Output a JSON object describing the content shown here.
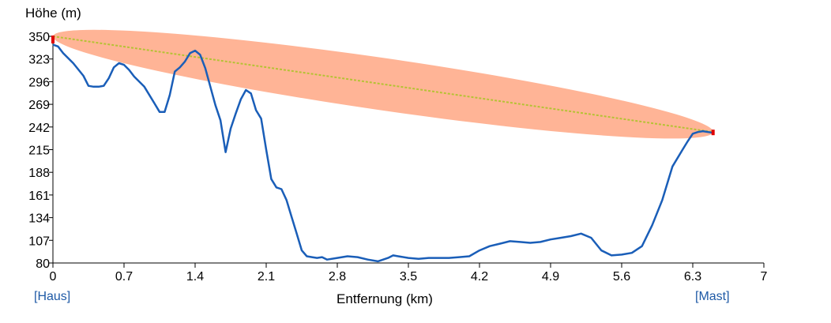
{
  "chart_data": {
    "type": "line",
    "ylabel": "Höhe (m)",
    "xlabel": "Entfernung (km)",
    "xlim": [
      0,
      7
    ],
    "ylim": [
      80,
      350
    ],
    "x_ticks": [
      "0",
      "0.7",
      "1.4",
      "2.1",
      "2.8",
      "3.5",
      "4.2",
      "4.9",
      "5.6",
      "6.3",
      "7"
    ],
    "y_ticks": [
      "350",
      "323",
      "296",
      "269",
      "242",
      "215",
      "188",
      "161",
      "134",
      "107",
      "80"
    ],
    "grid": false,
    "series": [
      {
        "color": "#1a5eb8",
        "x": [
          0,
          0.05,
          0.1,
          0.2,
          0.3,
          0.35,
          0.4,
          0.45,
          0.5,
          0.55,
          0.6,
          0.65,
          0.7,
          0.75,
          0.8,
          0.9,
          1.0,
          1.05,
          1.1,
          1.15,
          1.2,
          1.25,
          1.3,
          1.35,
          1.4,
          1.45,
          1.5,
          1.55,
          1.6,
          1.65,
          1.7,
          1.75,
          1.8,
          1.85,
          1.9,
          1.95,
          2.0,
          2.05,
          2.1,
          2.15,
          2.2,
          2.25,
          2.3,
          2.35,
          2.4,
          2.45,
          2.5,
          2.55,
          2.6,
          2.65,
          2.7,
          2.8,
          2.9,
          3.0,
          3.1,
          3.2,
          3.3,
          3.35,
          3.4,
          3.5,
          3.6,
          3.7,
          3.8,
          3.9,
          4.0,
          4.1,
          4.2,
          4.3,
          4.4,
          4.5,
          4.6,
          4.7,
          4.8,
          4.9,
          5.0,
          5.1,
          5.2,
          5.3,
          5.4,
          5.5,
          5.6,
          5.7,
          5.8,
          5.9,
          6.0,
          6.1,
          6.2,
          6.25,
          6.3,
          6.35,
          6.4,
          6.45,
          6.5
        ],
        "y": [
          340,
          338,
          330,
          318,
          303,
          291,
          290,
          290,
          291,
          300,
          313,
          318,
          316,
          310,
          302,
          290,
          270,
          260,
          260,
          280,
          308,
          313,
          320,
          330,
          333,
          328,
          312,
          290,
          268,
          250,
          212,
          240,
          258,
          275,
          286,
          282,
          262,
          252,
          215,
          180,
          170,
          168,
          155,
          135,
          115,
          95,
          88,
          87,
          86,
          87,
          84,
          86,
          88,
          87,
          84,
          82,
          86,
          89,
          88,
          86,
          85,
          86,
          86,
          86,
          87,
          88,
          95,
          100,
          103,
          106,
          105,
          104,
          105,
          108,
          110,
          112,
          115,
          110,
          95,
          89,
          90,
          92,
          100,
          125,
          155,
          195,
          215,
          225,
          234,
          236,
          237,
          236,
          235
        ]
      }
    ],
    "line_of_sight": {
      "from": [
        0,
        350
      ],
      "to": [
        6.5,
        236
      ],
      "line_color": "#b5c234",
      "ellipse_color": "#ffb496"
    }
  },
  "links": {
    "start": "[Haus]",
    "end": "[Mast]"
  }
}
